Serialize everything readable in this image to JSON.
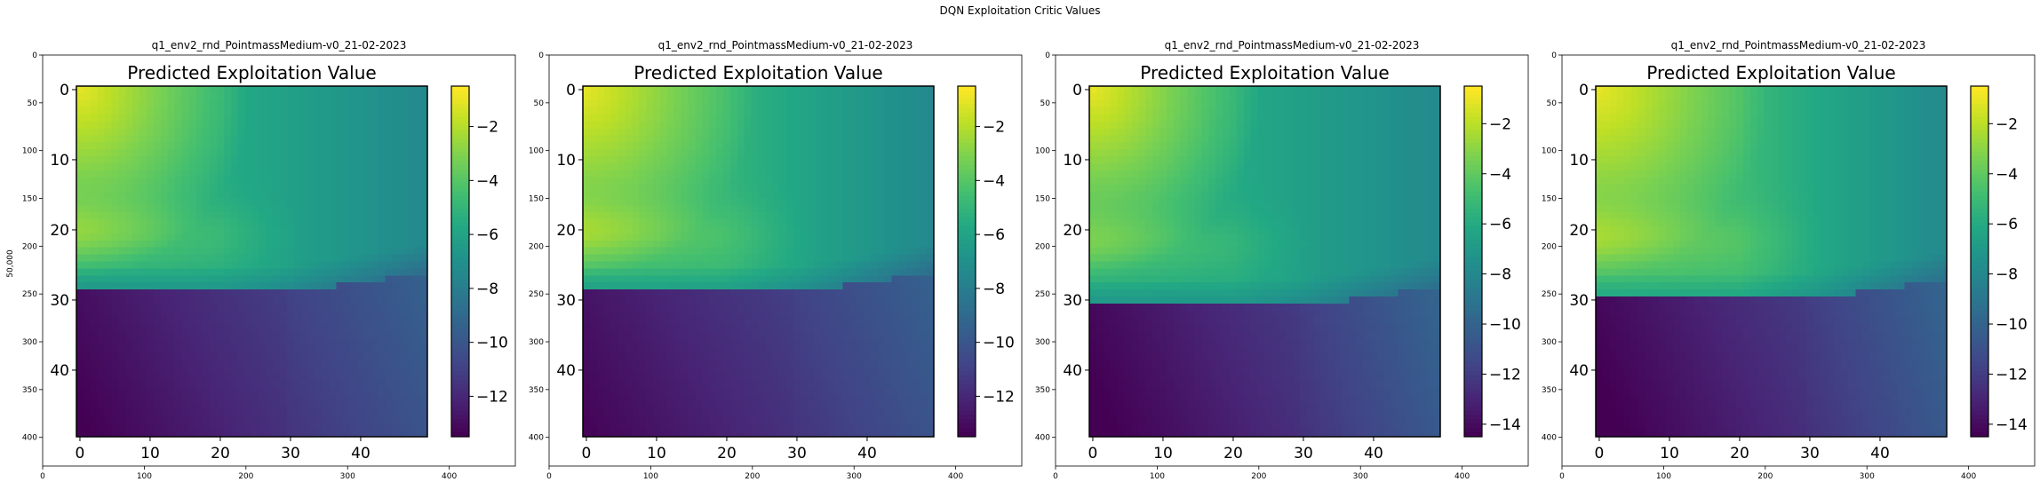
{
  "figure": {
    "suptitle": "DQN Exploitation Critic Values",
    "ylabel": "50,000"
  },
  "chart_data": [
    {
      "type": "heatmap",
      "subplot_title": "q1_env2_rnd_PointmassMedium-v0_21-02-2023",
      "inner_title": "Predicted Exploitation Value",
      "outer_x_ticks": [
        "0",
        "100",
        "200",
        "300",
        "400"
      ],
      "outer_y_ticks": [
        "0",
        "50",
        "100",
        "150",
        "200",
        "250",
        "300",
        "350",
        "400"
      ],
      "inner_x_ticks": [
        "0",
        "10",
        "20",
        "30",
        "40"
      ],
      "inner_y_ticks": [
        "0",
        "10",
        "20",
        "30",
        "40"
      ],
      "colorbar_ticks": [
        "−2",
        "−4",
        "−6",
        "−8",
        "−10",
        "−12"
      ],
      "colorbar_range": [
        -13.5,
        -0.5
      ],
      "colormap": "viridis",
      "grid_size": [
        50,
        50
      ],
      "value_field": {
        "yellow_corner": -1.0,
        "upper_mid": -5.5,
        "upper_right": -7.5,
        "lower_left": -13.0,
        "lower_mid": -11.0,
        "lower_right": -9.5,
        "boundary_row": 29
      }
    },
    {
      "type": "heatmap",
      "subplot_title": "q1_env2_rnd_PointmassMedium-v0_21-02-2023",
      "inner_title": "Predicted Exploitation Value",
      "outer_x_ticks": [
        "0",
        "100",
        "200",
        "300",
        "400"
      ],
      "outer_y_ticks": [
        "0",
        "50",
        "100",
        "150",
        "200",
        "250",
        "300",
        "350",
        "400"
      ],
      "inner_x_ticks": [
        "0",
        "10",
        "20",
        "30",
        "40"
      ],
      "inner_y_ticks": [
        "0",
        "10",
        "20",
        "30",
        "40"
      ],
      "colorbar_ticks": [
        "−2",
        "−4",
        "−6",
        "−8",
        "−10",
        "−12"
      ],
      "colorbar_range": [
        -13.5,
        -0.5
      ],
      "colormap": "viridis",
      "grid_size": [
        50,
        50
      ],
      "value_field": {
        "yellow_corner": -1.0,
        "upper_mid": -5.0,
        "upper_right": -7.5,
        "lower_left": -12.8,
        "lower_mid": -11.0,
        "lower_right": -9.5,
        "boundary_row": 29
      }
    },
    {
      "type": "heatmap",
      "subplot_title": "q1_env2_rnd_PointmassMedium-v0_21-02-2023",
      "inner_title": "Predicted Exploitation Value",
      "outer_x_ticks": [
        "0",
        "100",
        "200",
        "300",
        "400"
      ],
      "outer_y_ticks": [
        "0",
        "50",
        "100",
        "150",
        "200",
        "250",
        "300",
        "350",
        "400"
      ],
      "inner_x_ticks": [
        "0",
        "10",
        "20",
        "30",
        "40"
      ],
      "inner_y_ticks": [
        "0",
        "10",
        "20",
        "30",
        "40"
      ],
      "colorbar_ticks": [
        "−2",
        "−4",
        "−6",
        "−8",
        "−10",
        "−12",
        "−14"
      ],
      "colorbar_range": [
        -14.5,
        -0.5
      ],
      "colormap": "viridis",
      "grid_size": [
        50,
        50
      ],
      "value_field": {
        "yellow_corner": -1.0,
        "upper_mid": -6.0,
        "upper_right": -8.0,
        "lower_left": -14.2,
        "lower_mid": -12.0,
        "lower_right": -10.0,
        "boundary_row": 31
      }
    },
    {
      "type": "heatmap",
      "subplot_title": "q1_env2_rnd_PointmassMedium-v0_21-02-2023",
      "inner_title": "Predicted Exploitation Value",
      "outer_x_ticks": [
        "0",
        "100",
        "200",
        "300",
        "400"
      ],
      "outer_y_ticks": [
        "0",
        "50",
        "100",
        "150",
        "200",
        "250",
        "300",
        "350",
        "400"
      ],
      "inner_x_ticks": [
        "0",
        "10",
        "20",
        "30",
        "40"
      ],
      "inner_y_ticks": [
        "0",
        "10",
        "20",
        "30",
        "40"
      ],
      "colorbar_ticks": [
        "−2",
        "−4",
        "−6",
        "−8",
        "−10",
        "−12",
        "−14"
      ],
      "colorbar_range": [
        -14.5,
        -0.5
      ],
      "colormap": "viridis",
      "grid_size": [
        50,
        50
      ],
      "value_field": {
        "yellow_corner": -1.0,
        "upper_mid": -5.0,
        "upper_right": -8.0,
        "lower_left": -14.2,
        "lower_mid": -12.0,
        "lower_right": -10.0,
        "boundary_row": 30
      }
    }
  ]
}
